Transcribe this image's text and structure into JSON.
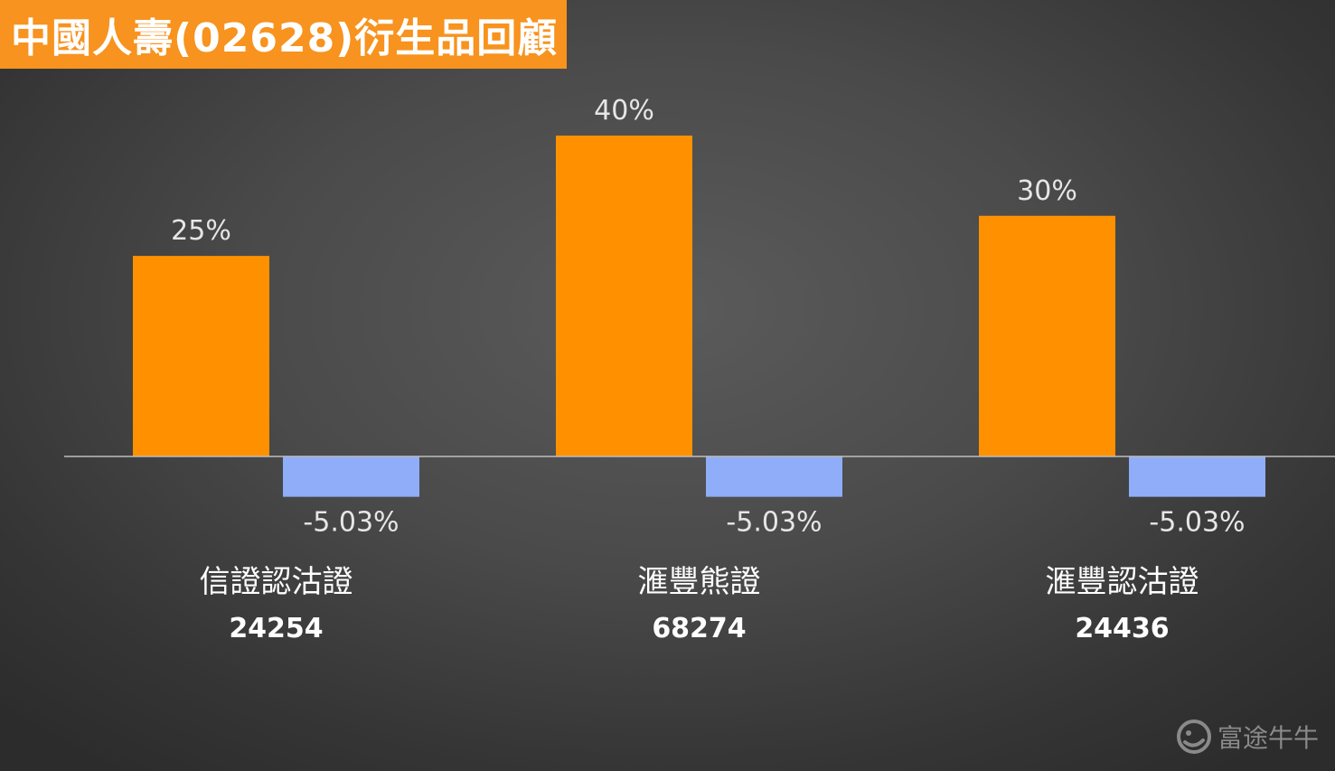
{
  "chart_data": {
    "type": "bar",
    "title": "中國人壽(02628)衍生品回顧",
    "categories": [
      {
        "name": "信證認沽證",
        "code": "24254"
      },
      {
        "name": "滙豐熊證",
        "code": "68274"
      },
      {
        "name": "滙豐認沽證",
        "code": "24436"
      }
    ],
    "series": [
      {
        "values": [
          25,
          40,
          30
        ],
        "labels": [
          "25%",
          "40%",
          "30%"
        ],
        "color": "#ff9100"
      },
      {
        "values": [
          -5.03,
          -5.03,
          -5.03
        ],
        "labels": [
          "-5.03%",
          "-5.03%",
          "-5.03%"
        ],
        "color": "#8fadf8"
      }
    ],
    "ylim": [
      -5.03,
      40
    ],
    "grid": false,
    "legend": "none"
  },
  "watermark": {
    "text": "富途牛牛",
    "icon": "futu-logo-icon"
  }
}
